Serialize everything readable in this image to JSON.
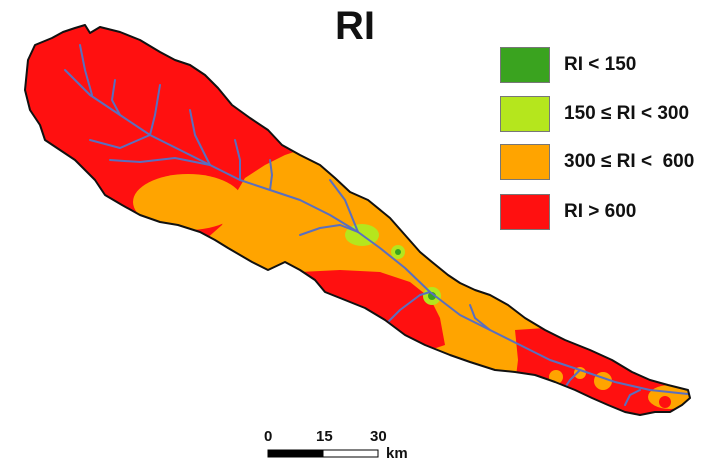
{
  "map": {
    "title": "RI",
    "colors": {
      "very_low": "#3aa31f",
      "low": "#b5e61d",
      "moderate": "#ffa400",
      "high": "#ff1010",
      "river": "#5a6fbf",
      "border": "#111111"
    }
  },
  "legend": {
    "items": [
      {
        "label": "RI < 150",
        "color": "#3aa31f"
      },
      {
        "label": "150 ≤ RI < 300",
        "color": "#b5e61d"
      },
      {
        "label": "300 ≤ RI <  600",
        "color": "#ffa400"
      },
      {
        "label": "RI > 600",
        "color": "#ff1010"
      }
    ]
  },
  "scale_bar": {
    "ticks": [
      "0",
      "15",
      "30"
    ],
    "unit": "km"
  }
}
